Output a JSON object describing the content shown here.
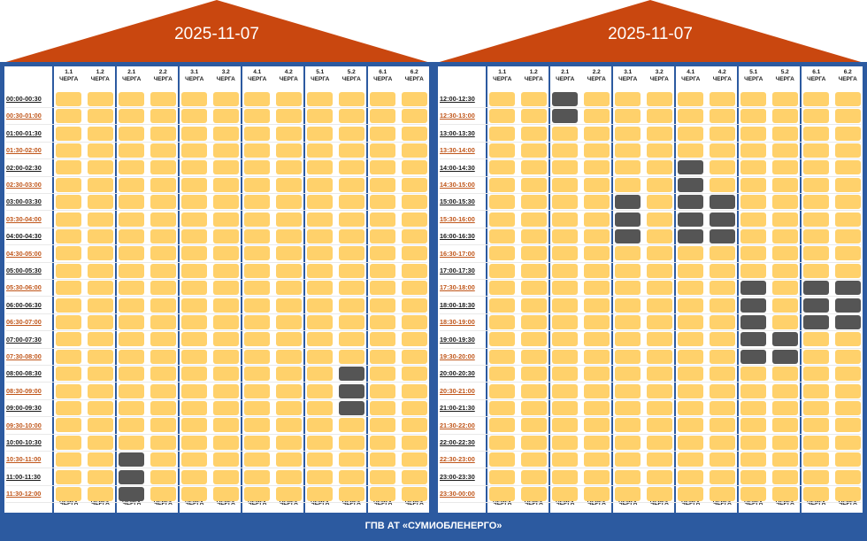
{
  "colors": {
    "roof": "#c9470f",
    "frame": "#2c5aa0",
    "power_on": "#ffd16b",
    "power_off": "#555555",
    "time_label_dark": "#1a1a1a",
    "time_label_alt": "#c0561a"
  },
  "footer_text": "ГПВ АТ «СУМИОБЛЕНЕРГО»",
  "queues": [
    {
      "num": "1.1",
      "word": "ЧЕРГА"
    },
    {
      "num": "1.2",
      "word": "ЧЕРГА"
    },
    {
      "num": "2.1",
      "word": "ЧЕРГА"
    },
    {
      "num": "2.2",
      "word": "ЧЕРГА"
    },
    {
      "num": "3.1",
      "word": "ЧЕРГА"
    },
    {
      "num": "3.2",
      "word": "ЧЕРГА"
    },
    {
      "num": "4.1",
      "word": "ЧЕРГА"
    },
    {
      "num": "4.2",
      "word": "ЧЕРГА"
    },
    {
      "num": "5.1",
      "word": "ЧЕРГА"
    },
    {
      "num": "5.2",
      "word": "ЧЕРГА"
    },
    {
      "num": "6.1",
      "word": "ЧЕРГА"
    },
    {
      "num": "6.2",
      "word": "ЧЕРГА"
    }
  ],
  "panels": [
    {
      "date": "2025-11-07",
      "times": [
        "00:00-00:30",
        "00:30-01:00",
        "01:00-01:30",
        "01:30-02:00",
        "02:00-02:30",
        "02:30-03:00",
        "03:00-03:30",
        "03:30-04:00",
        "04:00-04:30",
        "04:30-05:00",
        "05:00-05:30",
        "05:30-06:00",
        "06:00-06:30",
        "06:30-07:00",
        "07:00-07:30",
        "07:30-08:00",
        "08:00-08:30",
        "08:30-09:00",
        "09:00-09:30",
        "09:30-10:00",
        "10:00-10:30",
        "10:30-11:00",
        "11:00-11:30",
        "11:30-12:00"
      ],
      "outages": [
        [
          16,
          9
        ],
        [
          17,
          9
        ],
        [
          18,
          9
        ],
        [
          21,
          2
        ],
        [
          22,
          2
        ],
        [
          23,
          2
        ]
      ]
    },
    {
      "date": "2025-11-07",
      "times": [
        "12:00-12:30",
        "12:30-13:00",
        "13:00-13:30",
        "13:30-14:00",
        "14:00-14:30",
        "14:30-15:00",
        "15:00-15:30",
        "15:30-16:00",
        "16:00-16:30",
        "16:30-17:00",
        "17:00-17:30",
        "17:30-18:00",
        "18:00-18:30",
        "18:30-19:00",
        "19:00-19:30",
        "19:30-20:00",
        "20:00-20:30",
        "20:30-21:00",
        "21:00-21:30",
        "21:30-22:00",
        "22:00-22:30",
        "22:30-23:00",
        "23:00-23:30",
        "23:30-00:00"
      ],
      "outages": [
        [
          0,
          2
        ],
        [
          1,
          2
        ],
        [
          4,
          6
        ],
        [
          5,
          6
        ],
        [
          6,
          4
        ],
        [
          7,
          4
        ],
        [
          8,
          4
        ],
        [
          6,
          6
        ],
        [
          7,
          6
        ],
        [
          8,
          6
        ],
        [
          6,
          7
        ],
        [
          7,
          7
        ],
        [
          8,
          7
        ],
        [
          11,
          8
        ],
        [
          12,
          8
        ],
        [
          13,
          8
        ],
        [
          14,
          8
        ],
        [
          15,
          8
        ],
        [
          14,
          9
        ],
        [
          15,
          9
        ],
        [
          11,
          10
        ],
        [
          12,
          10
        ],
        [
          13,
          10
        ],
        [
          11,
          11
        ],
        [
          12,
          11
        ],
        [
          13,
          11
        ]
      ]
    }
  ]
}
